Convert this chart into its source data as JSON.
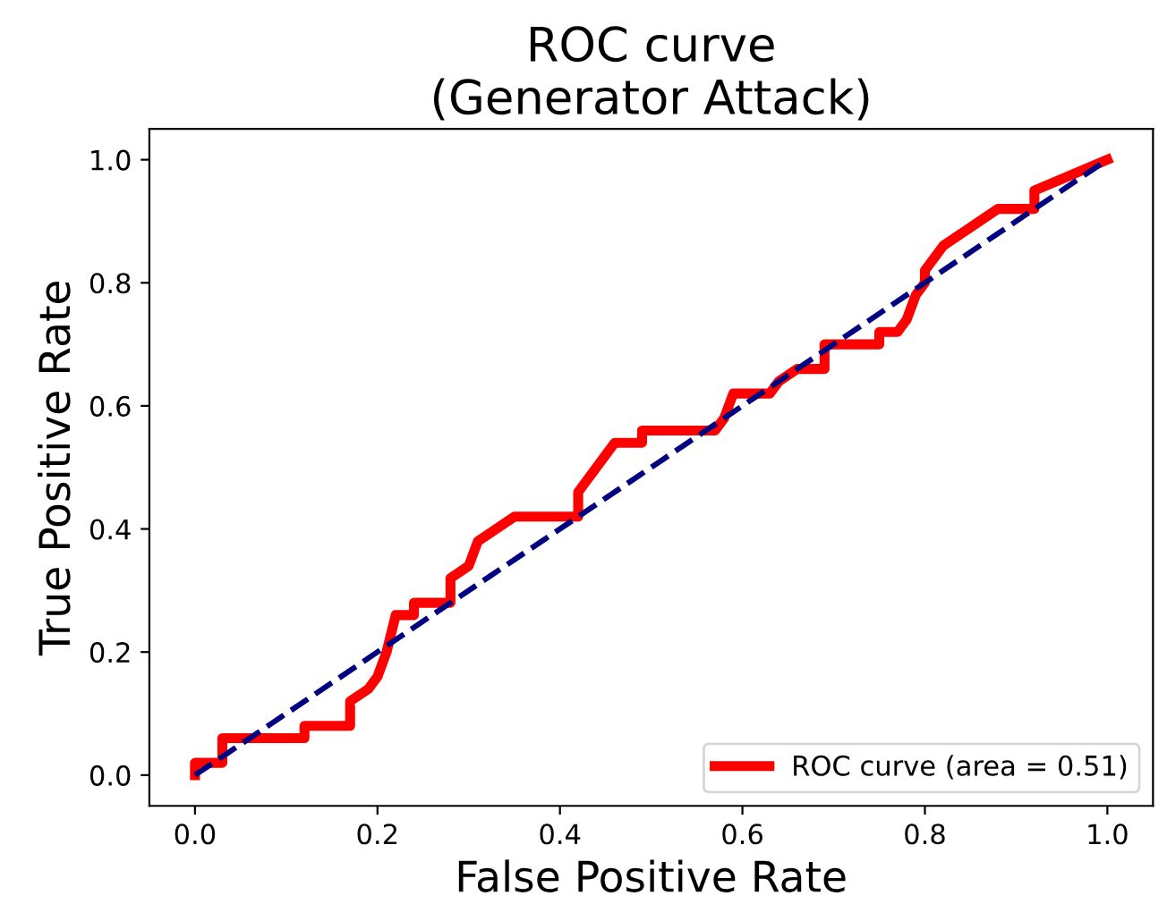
{
  "chart_data": {
    "type": "line",
    "title": "ROC curve\n(Generator Attack)",
    "xlabel": "False Positive Rate",
    "ylabel": "True Positive Rate",
    "xlim": [
      -0.05,
      1.05
    ],
    "ylim": [
      -0.05,
      1.05
    ],
    "xticks": [
      {
        "value": 0,
        "label": "0.0"
      },
      {
        "value": 0.2,
        "label": "0.2"
      },
      {
        "value": 0.4,
        "label": "0.4"
      },
      {
        "value": 0.6,
        "label": "0.6"
      },
      {
        "value": 0.8,
        "label": "0.8"
      },
      {
        "value": 1,
        "label": "1.0"
      }
    ],
    "yticks": [
      {
        "value": 0,
        "label": "0.0"
      },
      {
        "value": 0.2,
        "label": "0.2"
      },
      {
        "value": 0.4,
        "label": "0.4"
      },
      {
        "value": 0.6,
        "label": "0.6"
      },
      {
        "value": 0.8,
        "label": "0.8"
      },
      {
        "value": 1,
        "label": "1.0"
      }
    ],
    "grid": false,
    "legend": "bottom right",
    "marker": "none",
    "series": [
      {
        "name": "ROC curve (area = 0.51)",
        "color": "#ff0000",
        "line_style": "solid",
        "x": [
          0,
          0,
          0.03,
          0.03,
          0.12,
          0.12,
          0.17,
          0.17,
          0.19,
          0.2,
          0.21,
          0.22,
          0.24,
          0.24,
          0.28,
          0.28,
          0.3,
          0.31,
          0.33,
          0.35,
          0.42,
          0.42,
          0.44,
          0.46,
          0.49,
          0.49,
          0.57,
          0.58,
          0.59,
          0.63,
          0.64,
          0.66,
          0.69,
          0.69,
          0.75,
          0.75,
          0.77,
          0.78,
          0.79,
          0.8,
          0.8,
          0.82,
          0.84,
          0.86,
          0.88,
          0.92,
          0.92,
          1.0
        ],
        "values": [
          0,
          0.02,
          0.02,
          0.06,
          0.06,
          0.08,
          0.08,
          0.12,
          0.14,
          0.16,
          0.2,
          0.26,
          0.26,
          0.28,
          0.28,
          0.32,
          0.34,
          0.38,
          0.4,
          0.42,
          0.42,
          0.46,
          0.5,
          0.54,
          0.54,
          0.56,
          0.56,
          0.58,
          0.62,
          0.62,
          0.64,
          0.66,
          0.66,
          0.7,
          0.7,
          0.72,
          0.72,
          0.74,
          0.78,
          0.8,
          0.82,
          0.86,
          0.88,
          0.9,
          0.92,
          0.92,
          0.95,
          1.0
        ]
      },
      {
        "color": "#000080",
        "line_style": "dashed",
        "x": [
          0,
          1
        ],
        "values": [
          0,
          1
        ]
      }
    ]
  }
}
